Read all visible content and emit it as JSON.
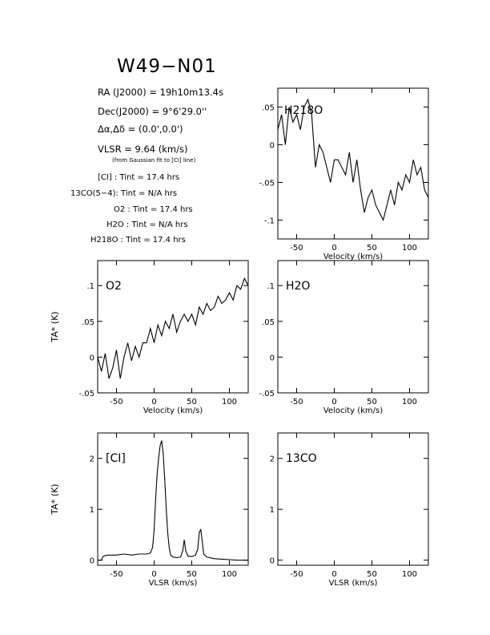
{
  "header": {
    "source": "W49−N01",
    "ra": "RA (J2000) =  19h10m13.4s",
    "dec": "Dec(J2000) =  9°6'29.0''",
    "offset": "Δα,Δδ = (0.0',0.0')",
    "vlsr": "VLSR  = 9.64 (km/s)",
    "vlsr_note": "(from Gaussian fit to [CI] line)",
    "integrations": [
      "[CI] : Tint = 17.4 hrs",
      "13CO(5−4): Tint = N/A hrs",
      "O2 : Tint = 17.4 hrs",
      "H2O : Tint = N/A hrs",
      "H218O : Tint = 17.4 hrs"
    ]
  },
  "chart_data": [
    {
      "id": "h218o",
      "type": "line",
      "label": "H218O",
      "xlabel": "Velocity (km/s)",
      "ylabel": "",
      "xlim": [
        -75,
        125
      ],
      "ylim": [
        -0.125,
        0.075
      ],
      "xticks": [
        -50,
        0,
        50,
        100
      ],
      "yticks": [
        0.05,
        0,
        -0.05,
        -0.1
      ],
      "series": [
        {
          "x": [
            -75,
            -70,
            -65,
            -60,
            -55,
            -50,
            -45,
            -40,
            -35,
            -30,
            -25,
            -20,
            -15,
            -10,
            -5,
            0,
            5,
            10,
            15,
            20,
            25,
            30,
            35,
            40,
            45,
            50,
            55,
            60,
            65,
            70,
            75,
            80,
            85,
            90,
            95,
            100,
            105,
            110,
            115,
            120,
            125
          ],
          "y": [
            0.02,
            0.04,
            0.0,
            0.05,
            0.03,
            0.04,
            0.02,
            0.05,
            0.06,
            0.04,
            -0.03,
            0.0,
            -0.01,
            -0.03,
            -0.05,
            -0.02,
            -0.02,
            -0.03,
            -0.04,
            -0.01,
            -0.05,
            -0.02,
            -0.06,
            -0.09,
            -0.07,
            -0.06,
            -0.08,
            -0.09,
            -0.1,
            -0.08,
            -0.06,
            -0.08,
            -0.05,
            -0.06,
            -0.04,
            -0.05,
            -0.02,
            -0.04,
            -0.03,
            -0.06,
            -0.07
          ]
        }
      ]
    },
    {
      "id": "o2",
      "type": "line",
      "label": "O2",
      "xlabel": "Velocity (km/s)",
      "ylabel": "TA* (K)",
      "xlim": [
        -75,
        125
      ],
      "ylim": [
        -0.05,
        0.135
      ],
      "xticks": [
        -50,
        0,
        50,
        100
      ],
      "yticks": [
        -0.05,
        0,
        0.05,
        0.1
      ],
      "series": [
        {
          "x": [
            -75,
            -70,
            -65,
            -60,
            -55,
            -50,
            -45,
            -40,
            -35,
            -30,
            -25,
            -20,
            -15,
            -10,
            -5,
            0,
            5,
            10,
            15,
            20,
            25,
            30,
            35,
            40,
            45,
            50,
            55,
            60,
            65,
            70,
            75,
            80,
            85,
            90,
            95,
            100,
            105,
            110,
            115,
            120,
            125
          ],
          "y": [
            0.0,
            -0.02,
            0.005,
            -0.03,
            -0.015,
            0.01,
            -0.03,
            0.0,
            0.02,
            -0.005,
            0.015,
            0.0,
            0.02,
            0.02,
            0.04,
            0.02,
            0.045,
            0.03,
            0.05,
            0.04,
            0.06,
            0.035,
            0.05,
            0.06,
            0.05,
            0.06,
            0.045,
            0.07,
            0.06,
            0.075,
            0.065,
            0.07,
            0.085,
            0.075,
            0.08,
            0.09,
            0.08,
            0.1,
            0.095,
            0.11,
            0.1
          ]
        }
      ]
    },
    {
      "id": "h2o",
      "type": "line",
      "label": "H2O",
      "xlabel": "Velocity (km/s)",
      "ylabel": "",
      "xlim": [
        -75,
        125
      ],
      "ylim": [
        -0.05,
        0.135
      ],
      "xticks": [
        -50,
        0,
        50,
        100
      ],
      "yticks": [
        -0.05,
        0,
        0.05,
        0.1
      ],
      "series": []
    },
    {
      "id": "ci",
      "type": "line",
      "label": "[CI]",
      "xlabel": "VLSR (km/s)",
      "ylabel": "TA* (K)",
      "xlim": [
        -75,
        125
      ],
      "ylim": [
        -0.1,
        2.5
      ],
      "xticks": [
        -50,
        0,
        50,
        100
      ],
      "yticks": [
        0,
        1,
        2
      ],
      "series": [
        {
          "x": [
            -75,
            -70,
            -68,
            -65,
            -60,
            -50,
            -40,
            -30,
            -20,
            -10,
            -5,
            -2,
            0,
            2,
            4,
            6,
            8,
            10,
            12,
            14,
            16,
            18,
            20,
            22,
            25,
            30,
            35,
            38,
            40,
            42,
            45,
            50,
            55,
            58,
            60,
            62,
            64,
            66,
            70,
            80,
            90,
            100,
            110,
            125
          ],
          "y": [
            0.0,
            0.0,
            0.07,
            0.09,
            0.1,
            0.1,
            0.12,
            0.1,
            0.12,
            0.12,
            0.14,
            0.25,
            0.6,
            1.2,
            1.7,
            2.0,
            2.25,
            2.35,
            2.1,
            1.6,
            1.05,
            0.55,
            0.25,
            0.1,
            0.06,
            0.05,
            0.06,
            0.18,
            0.4,
            0.18,
            0.08,
            0.07,
            0.1,
            0.22,
            0.55,
            0.6,
            0.35,
            0.12,
            0.06,
            0.03,
            0.02,
            0.01,
            0.0,
            0.0
          ]
        }
      ]
    },
    {
      "id": "13co",
      "type": "line",
      "label": "13CO",
      "xlabel": "VLSR (km/s)",
      "ylabel": "",
      "xlim": [
        -75,
        125
      ],
      "ylim": [
        -0.1,
        2.5
      ],
      "xticks": [
        -50,
        0,
        50,
        100
      ],
      "yticks": [
        0,
        1,
        2
      ],
      "series": []
    }
  ]
}
